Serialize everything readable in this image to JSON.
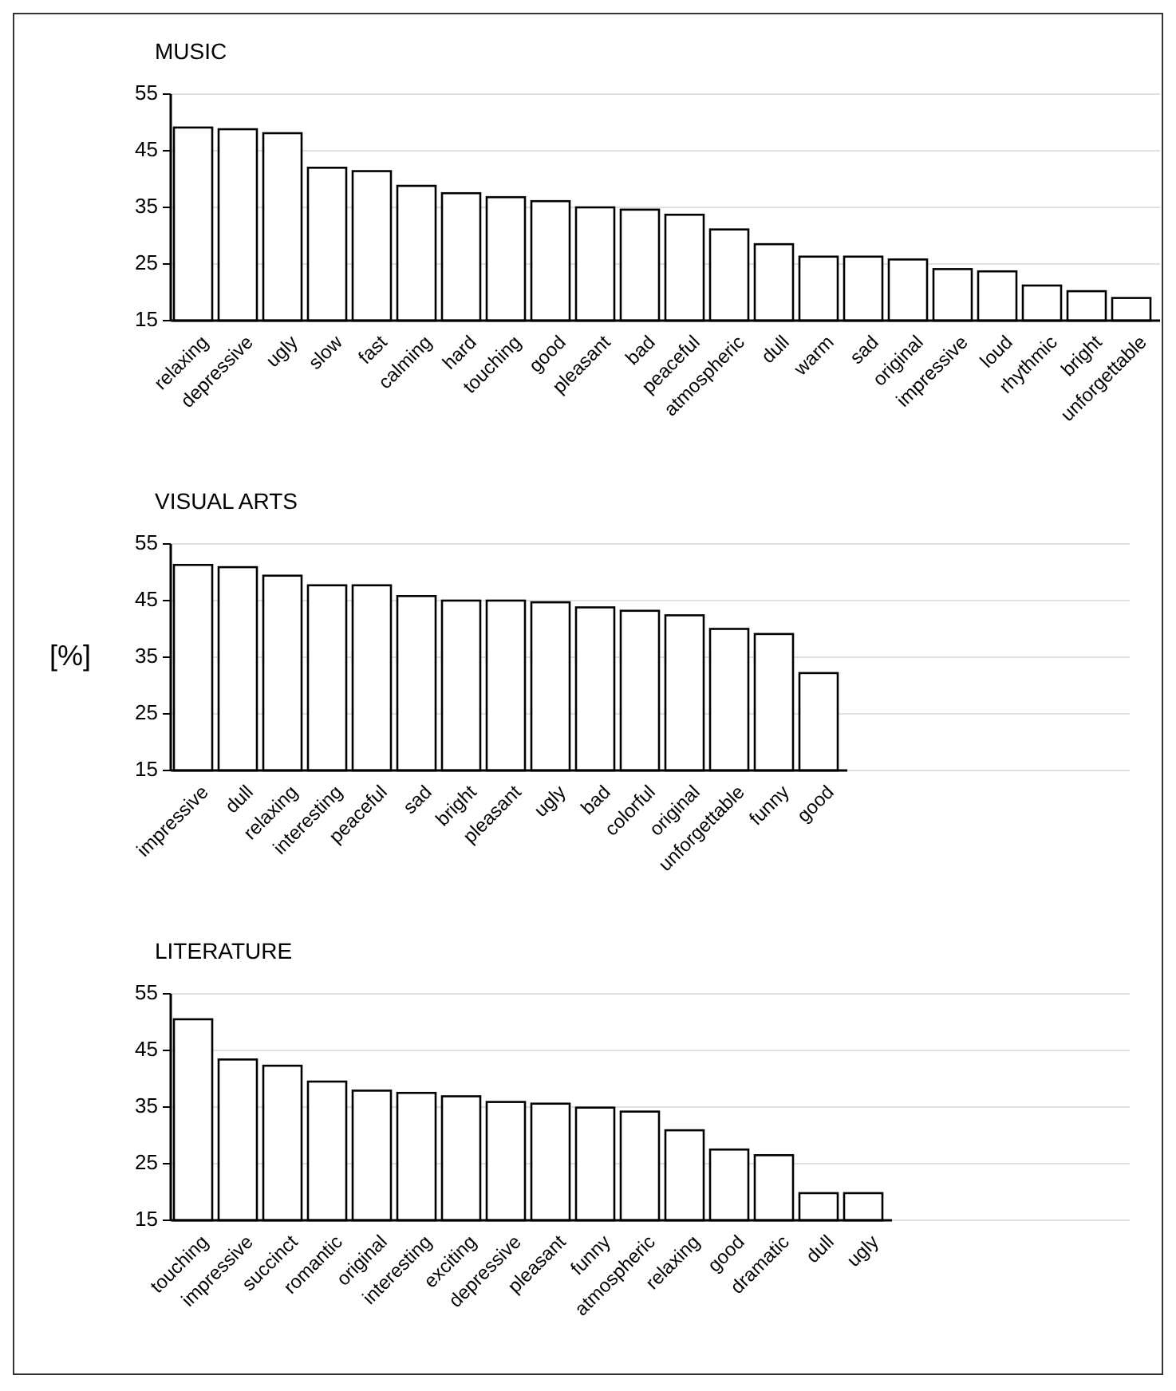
{
  "chart_data": [
    {
      "type": "bar",
      "title": "MUSIC",
      "categories": [
        "relaxing",
        "depressive",
        "ugly",
        "slow",
        "fast",
        "calming",
        "hard",
        "touching",
        "good",
        "pleasant",
        "bad",
        "peaceful",
        "atmospheric",
        "dull",
        "warm",
        "sad",
        "original",
        "impressive",
        "loud",
        "rhythmic",
        "bright",
        "unforgettable"
      ],
      "values": [
        49.1,
        48.8,
        48.1,
        42,
        41.4,
        38.8,
        37.5,
        36.8,
        36.1,
        35,
        34.6,
        33.7,
        31.1,
        28.5,
        26.3,
        26.3,
        25.8,
        24.1,
        23.7,
        21.2,
        20.2,
        19
      ],
      "color": "#ffffff",
      "ylim": [
        15,
        55
      ],
      "yticks": [
        15,
        25,
        35,
        45,
        55
      ],
      "grid": "y"
    },
    {
      "type": "bar",
      "title": "VISUAL ARTS",
      "ylabel": "[%]",
      "categories": [
        "impressive",
        "dull",
        "relaxing",
        "interesting",
        "peaceful",
        "sad",
        "bright",
        "pleasant",
        "ugly",
        "bad",
        "colorful",
        "original",
        "unforgettable",
        "funny",
        "good"
      ],
      "values": [
        51.3,
        50.9,
        49.4,
        47.7,
        47.7,
        45.8,
        45,
        45,
        44.7,
        43.8,
        43.2,
        42.4,
        40,
        39.1,
        32.2
      ],
      "color": "#ffffff",
      "ylim": [
        15,
        55
      ],
      "yticks": [
        15,
        25,
        35,
        45,
        55
      ],
      "grid": "y"
    },
    {
      "type": "bar",
      "title": "LITERATURE",
      "categories": [
        "touching",
        "impressive",
        "succinct",
        "romantic",
        "original",
        "interesting",
        "exciting",
        "depressive",
        "pleasant",
        "funny",
        "atmospheric",
        "relaxing",
        "good",
        "dramatic",
        "dull",
        "ugly"
      ],
      "values": [
        50.5,
        43.4,
        42.3,
        39.5,
        37.9,
        37.5,
        36.9,
        35.9,
        35.6,
        34.9,
        34.2,
        30.9,
        27.5,
        26.5,
        19.8,
        19.8
      ],
      "color": "#ffffff",
      "ylim": [
        15,
        55
      ],
      "yticks": [
        15,
        25,
        35,
        45,
        55
      ],
      "grid": "y"
    }
  ]
}
